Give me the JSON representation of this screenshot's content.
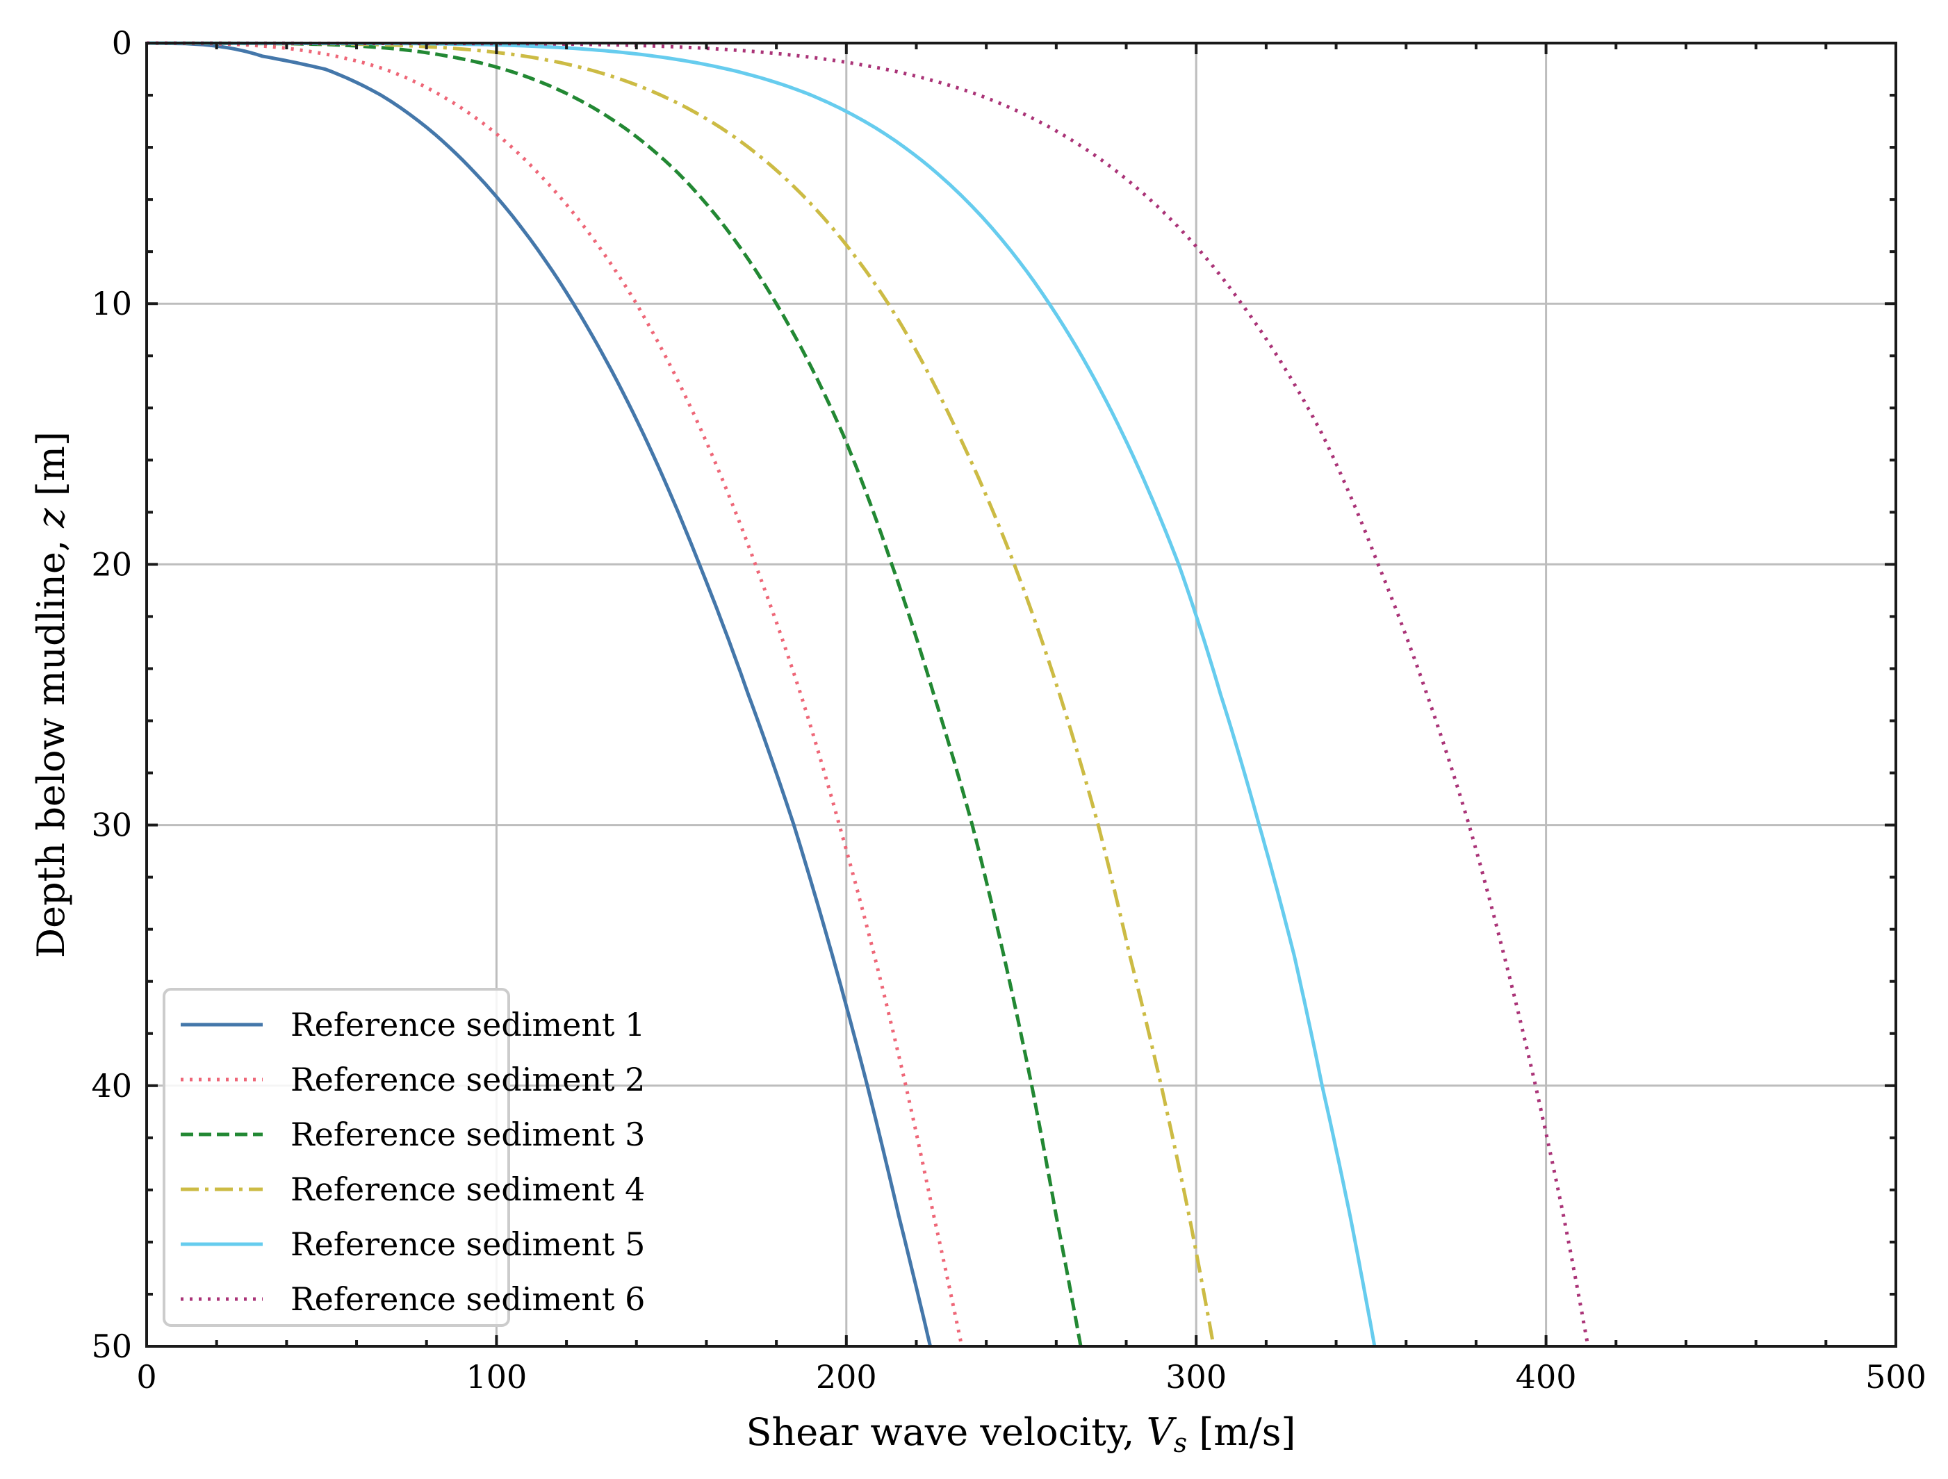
{
  "chart_data": {
    "type": "line",
    "title": "",
    "xlabel": "Shear wave velocity, V_s [m/s]",
    "ylabel": "Depth below mudline, z [m]",
    "xlim": [
      0,
      500
    ],
    "ylim": [
      50,
      0
    ],
    "y_inverted": true,
    "grid": true,
    "legend_position": "lower left",
    "x_ticks": [
      0,
      100,
      200,
      300,
      400,
      500
    ],
    "y_ticks": [
      0,
      10,
      20,
      30,
      40,
      50
    ],
    "x_minor_step": 20,
    "y_minor_step": 2,
    "depth_z": [
      0,
      0.25,
      0.5,
      1,
      2,
      5,
      10,
      15,
      20,
      25,
      30,
      35,
      40,
      45,
      50
    ],
    "series": [
      {
        "name": "Reference sediment 1",
        "color": "#4477AA",
        "style": "solid",
        "vs": [
          0,
          26,
          33,
          51,
          67,
          94,
          122,
          142,
          158,
          172,
          185,
          196,
          206,
          215,
          224
        ]
      },
      {
        "name": "Reference sediment 2",
        "color": "#EE6677",
        "style": "dotted",
        "vs": [
          0,
          43,
          54,
          68,
          84,
          112,
          140,
          159,
          174,
          187,
          198,
          208,
          217,
          225,
          233
        ]
      },
      {
        "name": "Reference sediment 3",
        "color": "#228833",
        "style": "dashed",
        "vs": [
          0,
          73,
          86,
          102,
          121,
          152,
          180,
          199,
          213,
          225,
          236,
          245,
          253,
          260,
          267
        ]
      },
      {
        "name": "Reference sediment 4",
        "color": "#CCBB44",
        "style": "dashdot",
        "vs": [
          0,
          92,
          108,
          126,
          147,
          181,
          212,
          232,
          248,
          261,
          272,
          281,
          290,
          298,
          305
        ]
      },
      {
        "name": "Reference sediment 5",
        "color": "#66CCEE",
        "style": "solid",
        "vs": [
          0,
          127,
          145,
          166,
          190,
          226,
          258,
          279,
          295,
          307,
          318,
          328,
          336,
          344,
          351
        ]
      },
      {
        "name": "Reference sediment 6",
        "color": "#AA3377",
        "style": "dotted",
        "vs": [
          0,
          166,
          187,
          211,
          238,
          278,
          313,
          336,
          352,
          366,
          378,
          388,
          397,
          405,
          412
        ]
      }
    ]
  },
  "axes": {
    "x_tick_labels": [
      "0",
      "100",
      "200",
      "300",
      "400",
      "500"
    ],
    "y_tick_labels": [
      "0",
      "10",
      "20",
      "30",
      "40",
      "50"
    ],
    "xlabel_main": "Shear wave velocity, ",
    "xlabel_var": "V",
    "xlabel_sub": "s",
    "xlabel_unit": " [m/s]",
    "ylabel_main": "Depth below mudline, ",
    "ylabel_var": "z",
    "ylabel_unit": " [m]"
  },
  "legend": {
    "items": [
      "Reference sediment 1",
      "Reference sediment 2",
      "Reference sediment 3",
      "Reference sediment 4",
      "Reference sediment 5",
      "Reference sediment 6"
    ]
  }
}
